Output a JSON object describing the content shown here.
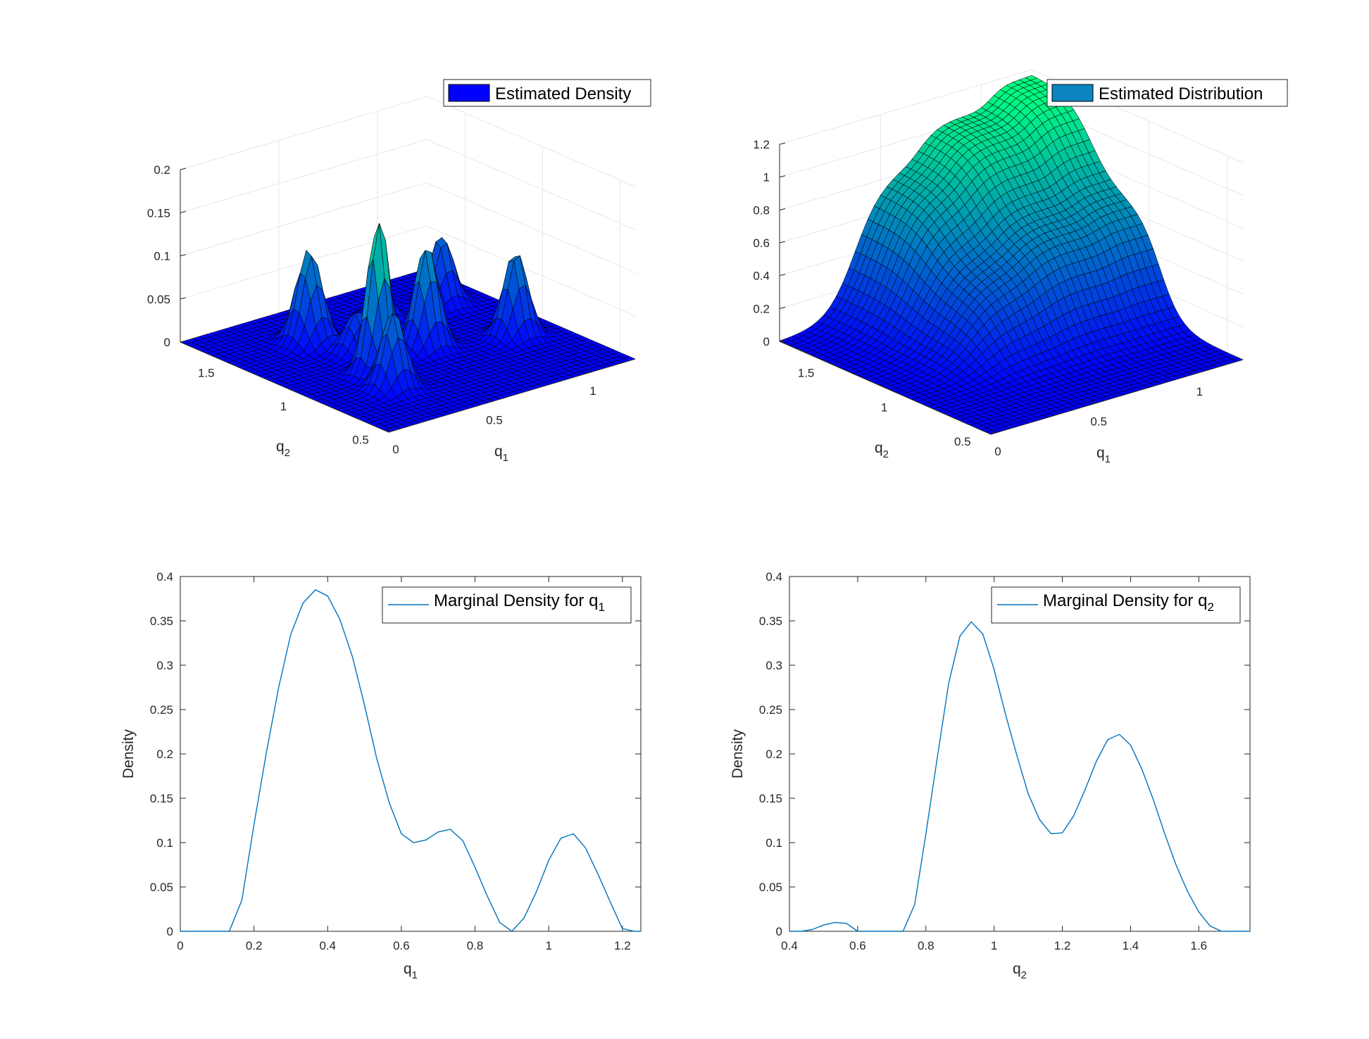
{
  "chart_data": [
    {
      "type": "surface",
      "legend": "Estimated Density",
      "legend_color": "#0000FF",
      "colormap": [
        "#0000FF",
        "#00FF80"
      ],
      "xlabel": {
        "text": "q",
        "sub": "1"
      },
      "ylabel": {
        "text": "q",
        "sub": "2"
      },
      "xticks": [
        "0",
        "0.5",
        "1"
      ],
      "yticks": [
        "0.5",
        "1",
        "1.5"
      ],
      "zticks": [
        "0",
        "0.05",
        "0.1",
        "0.15",
        "0.2"
      ],
      "xlim": [
        0,
        1.25
      ],
      "ylim": [
        0.4,
        1.75
      ],
      "zlim": [
        0,
        0.2
      ],
      "grid": true,
      "legend_position": "top-right"
    },
    {
      "type": "surface",
      "legend": "Estimated Distribution",
      "legend_color": "#0A85BF",
      "colormap": [
        "#0000FF",
        "#00FF80"
      ],
      "xlabel": {
        "text": "q",
        "sub": "1"
      },
      "ylabel": {
        "text": "q",
        "sub": "2"
      },
      "xticks": [
        "0",
        "0.5",
        "1"
      ],
      "yticks": [
        "0.5",
        "1",
        "1.5"
      ],
      "zticks": [
        "0",
        "0.2",
        "0.4",
        "0.6",
        "0.8",
        "1",
        "1.2"
      ],
      "xlim": [
        0,
        1.25
      ],
      "ylim": [
        0.4,
        1.75
      ],
      "zlim": [
        0,
        1.2
      ],
      "grid": true,
      "legend_position": "top-right"
    },
    {
      "type": "line",
      "legend": {
        "text": "Marginal Density for q",
        "sub": "1"
      },
      "line_color": "#0072BD",
      "xlabel": {
        "text": "q",
        "sub": "1"
      },
      "ylabel": "Density",
      "xlim": [
        0,
        1.25
      ],
      "ylim": [
        0,
        0.4
      ],
      "xticks": [
        0,
        0.2,
        0.4,
        0.6,
        0.8,
        1,
        1.2
      ],
      "xtick_labels": [
        "0",
        "0.2",
        "0.4",
        "0.6",
        "0.8",
        "1",
        "1.2"
      ],
      "yticks": [
        0,
        0.05,
        0.1,
        0.15,
        0.2,
        0.25,
        0.3,
        0.35,
        0.4
      ],
      "ytick_labels": [
        "0",
        "0.05",
        "0.1",
        "0.15",
        "0.2",
        "0.25",
        "0.3",
        "0.35",
        "0.4"
      ],
      "x": [
        0,
        0.033,
        0.067,
        0.1,
        0.133,
        0.167,
        0.2,
        0.233,
        0.267,
        0.3,
        0.333,
        0.367,
        0.4,
        0.433,
        0.467,
        0.5,
        0.533,
        0.567,
        0.6,
        0.633,
        0.667,
        0.7,
        0.733,
        0.767,
        0.8,
        0.833,
        0.867,
        0.9,
        0.933,
        0.967,
        1.0,
        1.033,
        1.067,
        1.1,
        1.133,
        1.167,
        1.2,
        1.233,
        1.25
      ],
      "y": [
        0,
        0,
        0,
        0,
        0,
        0.035,
        0.12,
        0.2,
        0.275,
        0.335,
        0.37,
        0.385,
        0.378,
        0.352,
        0.31,
        0.255,
        0.195,
        0.145,
        0.11,
        0.1,
        0.103,
        0.112,
        0.115,
        0.102,
        0.072,
        0.04,
        0.01,
        0,
        0.015,
        0.045,
        0.08,
        0.105,
        0.11,
        0.094,
        0.065,
        0.033,
        0.003,
        0,
        0
      ],
      "grid": false,
      "legend_position": "top-right"
    },
    {
      "type": "line",
      "legend": {
        "text": "Marginal Density for q",
        "sub": "2"
      },
      "line_color": "#0072BD",
      "xlabel": {
        "text": "q",
        "sub": "2"
      },
      "ylabel": "Density",
      "xlim": [
        0.4,
        1.75
      ],
      "ylim": [
        0,
        0.4
      ],
      "xticks": [
        0.4,
        0.6,
        0.8,
        1,
        1.2,
        1.4,
        1.6
      ],
      "xtick_labels": [
        "0.4",
        "0.6",
        "0.8",
        "1",
        "1.2",
        "1.4",
        "1.6"
      ],
      "yticks": [
        0,
        0.05,
        0.1,
        0.15,
        0.2,
        0.25,
        0.3,
        0.35,
        0.4
      ],
      "ytick_labels": [
        "0",
        "0.05",
        "0.1",
        "0.15",
        "0.2",
        "0.25",
        "0.3",
        "0.35",
        "0.4"
      ],
      "x": [
        0.4,
        0.433,
        0.467,
        0.5,
        0.533,
        0.567,
        0.6,
        0.633,
        0.667,
        0.7,
        0.733,
        0.767,
        0.8,
        0.833,
        0.867,
        0.9,
        0.933,
        0.967,
        1.0,
        1.033,
        1.067,
        1.1,
        1.133,
        1.167,
        1.2,
        1.233,
        1.267,
        1.3,
        1.333,
        1.367,
        1.4,
        1.433,
        1.467,
        1.5,
        1.533,
        1.567,
        1.6,
        1.633,
        1.667,
        1.7,
        1.75
      ],
      "y": [
        0,
        0,
        0.002,
        0.007,
        0.01,
        0.009,
        0,
        0,
        0,
        0,
        0,
        0.03,
        0.11,
        0.195,
        0.28,
        0.333,
        0.349,
        0.335,
        0.295,
        0.245,
        0.198,
        0.155,
        0.126,
        0.11,
        0.111,
        0.13,
        0.16,
        0.192,
        0.216,
        0.222,
        0.21,
        0.183,
        0.148,
        0.11,
        0.075,
        0.045,
        0.022,
        0.006,
        0,
        0,
        0
      ],
      "grid": false,
      "legend_position": "top-right"
    }
  ]
}
